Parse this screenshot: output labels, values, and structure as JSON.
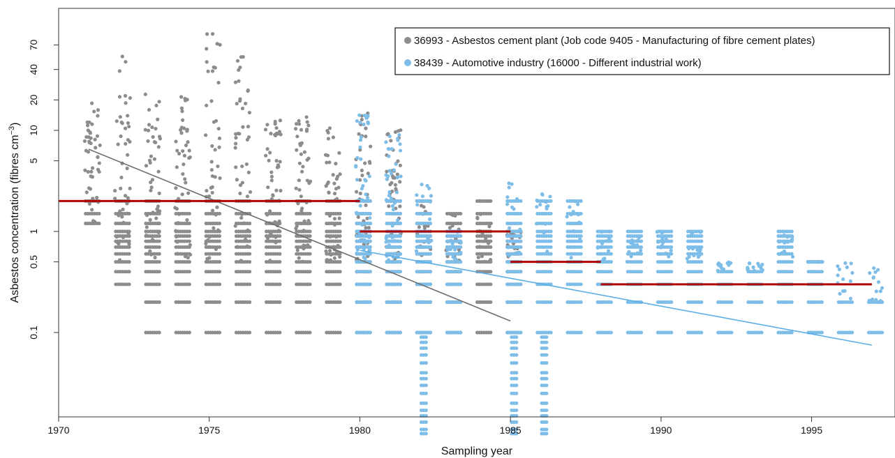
{
  "chart_data": {
    "type": "scatter",
    "xlabel": "Sampling year",
    "ylabel": "Asbestos concentration (fibres cm",
    "ylabel_sup": "−3",
    "ylabel_close": ")",
    "xlim": [
      1970,
      1997.5
    ],
    "ylim": [
      0.006,
      200
    ],
    "y_scale": "log",
    "x_ticks": [
      1970,
      1975,
      1980,
      1985,
      1990,
      1995
    ],
    "y_ticks": [
      0.1,
      0.5,
      1,
      5,
      10,
      20,
      40,
      70
    ],
    "y_tick_labels": [
      "0.1",
      "0.5",
      "1",
      "5",
      "10",
      "20",
      "40",
      "70"
    ],
    "grid": false,
    "legend_position": "top-right",
    "colors": {
      "cement": "#8c8c8c",
      "automotive": "#7dbde8",
      "mean": "#b00000",
      "cement_fit": "#6e6e6e",
      "automotive_fit": "#5aaee6"
    },
    "series": [
      {
        "name": "36993 - Asbestos cement plant (Job code 9405 - Manufacturing of fibre cement plates)",
        "color": "#8c8c8c",
        "years": [
          1971,
          1972,
          1973,
          1974,
          1975,
          1976,
          1977,
          1978,
          1979,
          1980,
          1981,
          1982,
          1983,
          1984,
          1985
        ],
        "max_by_year": [
          20,
          55,
          25,
          22,
          110,
          65,
          13,
          15,
          14,
          15,
          11,
          2,
          1.6,
          2.2,
          1
        ],
        "min_by_year": [
          1.2,
          0.3,
          0.1,
          0.1,
          0.1,
          0.1,
          0.1,
          0.1,
          0.1,
          0.1,
          0.1,
          0.1,
          0.1,
          0.1,
          0.1
        ],
        "trend": {
          "x": [
            1971,
            1985
          ],
          "y": [
            6.5,
            0.13
          ]
        }
      },
      {
        "name": "38439 - Automotive industry (16000 - Different industrial work)",
        "color": "#7dbde8",
        "years": [
          1980,
          1981,
          1982,
          1983,
          1985,
          1986,
          1987,
          1988,
          1989,
          1990,
          1991,
          1992,
          1993,
          1994,
          1995,
          1996,
          1997
        ],
        "max_by_year": [
          16,
          11,
          3,
          1,
          3,
          3,
          2,
          1,
          1,
          1,
          1,
          0.4,
          0.4,
          1,
          0.5,
          0.2,
          0.2
        ],
        "min_by_year": [
          0.1,
          0.1,
          0.01,
          0.1,
          0.01,
          0.01,
          0.1,
          0.1,
          0.1,
          0.1,
          0.1,
          0.1,
          0.1,
          0.1,
          0.1,
          0.1,
          0.1
        ],
        "trend": {
          "x": [
            1980,
            1997
          ],
          "y": [
            0.65,
            0.075
          ]
        }
      }
    ],
    "period_means": [
      {
        "x": [
          1970,
          1980
        ],
        "y": 2
      },
      {
        "x": [
          1980,
          1985
        ],
        "y": 1
      },
      {
        "x": [
          1985,
          1988
        ],
        "y": 0.5
      },
      {
        "x": [
          1988,
          1997
        ],
        "y": 0.3
      }
    ]
  }
}
